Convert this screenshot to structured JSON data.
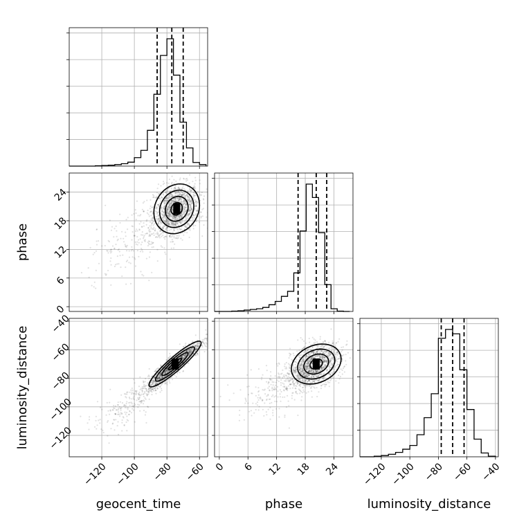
{
  "chart_data": {
    "type": "corner",
    "parameters": [
      "geocent_time",
      "phase",
      "luminosity_distance"
    ],
    "ranges": {
      "geocent_time": [
        -140,
        -55
      ],
      "phase": [
        -1,
        28
      ],
      "luminosity_distance": [
        -135,
        -38
      ]
    },
    "ticks": {
      "geocent_time": [
        -120,
        -100,
        -80,
        -60
      ],
      "phase": [
        0,
        6,
        12,
        18,
        24
      ],
      "luminosity_distance": [
        -120,
        -100,
        -80,
        -60,
        -40
      ]
    },
    "tick_labels": {
      "geocent_time": [
        "−120",
        "−100",
        "−80",
        "−60"
      ],
      "phase": [
        "0",
        "6",
        "12",
        "18",
        "24"
      ],
      "luminosity_distance": [
        "−120",
        "−100",
        "−80",
        "−60",
        "−40"
      ]
    },
    "quantiles": {
      "geocent_time": [
        -86,
        -77,
        -70
      ],
      "phase": [
        16.5,
        20.3,
        22.5
      ],
      "luminosity_distance": [
        -78,
        -70,
        -62
      ]
    },
    "histograms": {
      "geocent_time": {
        "edges": [
          -140,
          -136,
          -132,
          -128,
          -124,
          -120,
          -116,
          -112,
          -108,
          -104,
          -100,
          -96,
          -92,
          -88,
          -84,
          -80,
          -76,
          -72,
          -68,
          -64,
          -60,
          -56
        ],
        "counts": [
          0,
          0,
          0,
          0,
          1,
          2,
          3,
          5,
          8,
          13,
          28,
          52,
          118,
          237,
          365,
          420,
          300,
          145,
          60,
          12,
          5
        ]
      },
      "phase": {
        "edges": [
          -1,
          0,
          1.3,
          2.6,
          3.9,
          5.2,
          6.5,
          7.8,
          9.1,
          10.4,
          11.7,
          13,
          14.3,
          15.6,
          16.9,
          18.2,
          19.5,
          20.8,
          22.1,
          23.4,
          24.7,
          26,
          27.3
        ],
        "counts": [
          0,
          0,
          0,
          1,
          2,
          4,
          6,
          8,
          12,
          20,
          30,
          45,
          60,
          115,
          240,
          380,
          340,
          235,
          80,
          8,
          1,
          0
        ]
      },
      "luminosity_distance": {
        "edges": [
          -135,
          -130,
          -125,
          -120,
          -115,
          -110,
          -105,
          -100,
          -95,
          -90,
          -85,
          -80,
          -75,
          -70,
          -65,
          -60,
          -55,
          -50,
          -45,
          -40
        ],
        "counts": [
          0,
          0,
          1,
          2,
          4,
          7,
          12,
          18,
          35,
          62,
          100,
          188,
          202,
          195,
          138,
          75,
          28,
          6,
          1
        ]
      }
    },
    "joint_2d": [
      {
        "x": "geocent_time",
        "y": "phase",
        "center": [
          -74,
          20.5
        ],
        "sigma": [
          7,
          2.6
        ],
        "correlation": 0.15,
        "tail": {
          "from": [
            -76,
            19
          ],
          "to": [
            -120,
            9
          ],
          "spread": [
            6,
            2.5
          ]
        }
      },
      {
        "x": "geocent_time",
        "y": "luminosity_distance",
        "center": [
          -75,
          -70
        ],
        "sigma": [
          8,
          8
        ],
        "correlation": 0.92,
        "tail": {
          "from": [
            -80,
            -76
          ],
          "to": [
            -118,
            -112
          ],
          "spread": [
            4,
            4
          ]
        }
      },
      {
        "x": "phase",
        "y": "luminosity_distance",
        "center": [
          20.3,
          -70
        ],
        "sigma": [
          2.6,
          7
        ],
        "correlation": 0.25,
        "tail": {
          "from": [
            18,
            -76
          ],
          "to": [
            8,
            -98
          ],
          "spread": [
            2.5,
            6
          ]
        }
      }
    ],
    "contour_levels_sigma": [
      0.5,
      1.0,
      1.5,
      2.0
    ],
    "grid": true
  }
}
